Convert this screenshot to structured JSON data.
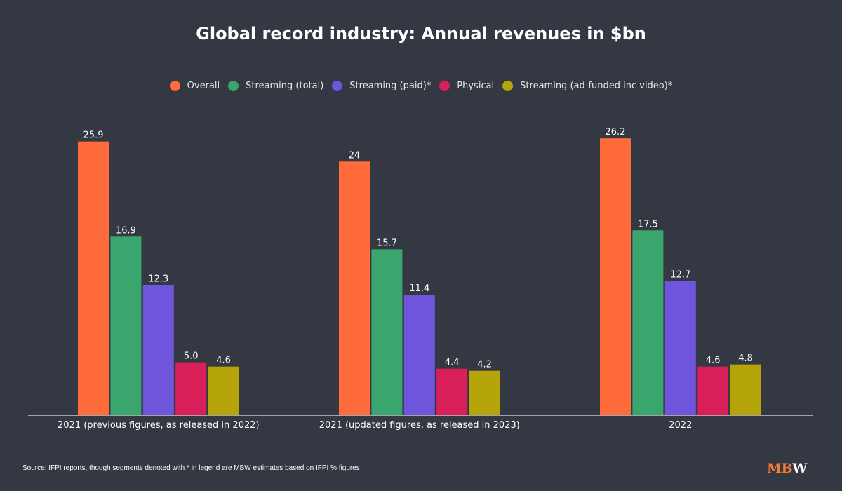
{
  "chart_data": {
    "type": "bar",
    "title": "Global record industry: Annual revenues in $bn",
    "categories": [
      "2021 (previous figures, as released in 2022)",
      "2021 (updated figures, as released in 2023)",
      "2022"
    ],
    "series": [
      {
        "name": "Overall",
        "color": "#ff6b3b",
        "values": [
          25.9,
          24,
          26.2
        ],
        "labels": [
          "25.9",
          "24",
          "26.2"
        ]
      },
      {
        "name": "Streaming (total)",
        "color": "#3ba56e",
        "values": [
          16.9,
          15.7,
          17.5
        ],
        "labels": [
          "16.9",
          "15.7",
          "17.5"
        ]
      },
      {
        "name": "Streaming (paid)*",
        "color": "#6e55dc",
        "values": [
          12.3,
          11.4,
          12.7
        ],
        "labels": [
          "12.3",
          "11.4",
          "12.7"
        ]
      },
      {
        "name": "Physical",
        "color": "#d81f5a",
        "values": [
          5.0,
          4.4,
          4.6
        ],
        "labels": [
          "5.0",
          "4.4",
          "4.6"
        ]
      },
      {
        "name": "Streaming (ad-funded inc video)*",
        "color": "#b5a50a",
        "values": [
          4.6,
          4.2,
          4.8
        ],
        "labels": [
          "4.6",
          "4.2",
          "4.8"
        ]
      }
    ],
    "xlabel": "",
    "ylabel": "",
    "ylim": [
      0,
      28
    ],
    "grid": false,
    "legend_position": "top-center"
  },
  "source": "Source: IFPI reports, though segments denoted with * in legend are MBW estimates based on IFPI % figures",
  "logo": {
    "part1": "MB",
    "part2": "W"
  }
}
